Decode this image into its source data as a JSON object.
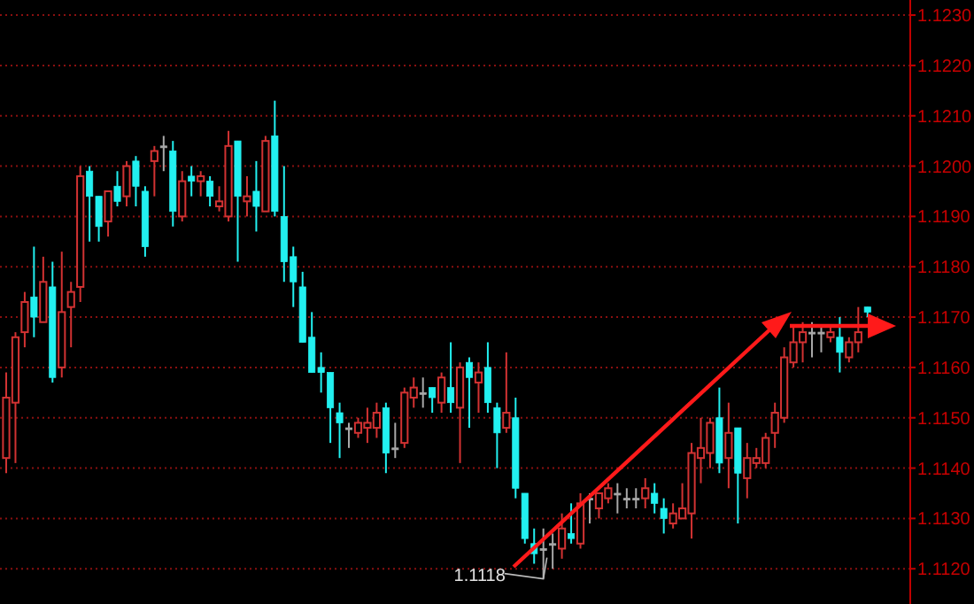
{
  "chart_data": {
    "type": "candlestick",
    "categories": [
      null,
      null,
      null,
      null,
      null,
      null,
      null,
      null,
      null,
      null,
      null,
      null,
      null,
      null,
      null,
      null,
      null,
      null,
      null,
      null,
      null,
      null,
      null,
      null,
      null,
      null,
      null,
      null,
      null,
      null,
      null,
      null,
      null,
      null,
      null,
      null,
      null,
      null,
      null,
      null,
      null,
      null,
      null,
      null,
      null,
      null,
      null,
      null,
      null,
      null,
      null,
      null,
      null,
      null,
      null,
      null,
      null,
      null,
      null,
      null,
      null,
      null,
      null,
      null,
      null,
      null,
      null,
      null,
      null,
      null,
      null,
      null,
      null,
      null,
      null,
      null,
      null,
      null,
      null,
      null,
      null,
      null,
      null,
      null,
      null,
      null,
      null,
      null,
      null,
      null,
      null,
      null,
      null,
      null
    ],
    "ohlc": [
      [
        1.1142,
        1.1159,
        1.1139,
        1.1154
      ],
      [
        1.1153,
        1.1167,
        1.1141,
        1.1166
      ],
      [
        1.1167,
        1.1175,
        1.1164,
        1.1173
      ],
      [
        1.1174,
        1.1184,
        1.1166,
        1.117
      ],
      [
        1.1169,
        1.1182,
        1.1169,
        1.1177
      ],
      [
        1.1176,
        1.1181,
        1.1157,
        1.1158
      ],
      [
        1.116,
        1.1183,
        1.1158,
        1.1171
      ],
      [
        1.1172,
        1.1177,
        1.1164,
        1.1175
      ],
      [
        1.1176,
        1.12,
        1.1173,
        1.1198
      ],
      [
        1.1199,
        1.12,
        1.1185,
        1.1194
      ],
      [
        1.1194,
        1.1194,
        1.1185,
        1.1188
      ],
      [
        1.1189,
        1.1195,
        1.1186,
        1.1195
      ],
      [
        1.1196,
        1.1199,
        1.1192,
        1.1193
      ],
      [
        1.1194,
        1.1201,
        1.1192,
        1.12
      ],
      [
        1.1201,
        1.1202,
        1.1192,
        1.1196
      ],
      [
        1.1195,
        1.1196,
        1.1182,
        1.1184
      ],
      [
        1.1201,
        1.1204,
        1.1194,
        1.1203
      ],
      [
        1.1204,
        1.1206,
        1.1199,
        1.1204
      ],
      [
        1.1203,
        1.1205,
        1.1188,
        1.1191
      ],
      [
        1.119,
        1.1199,
        1.1189,
        1.1197
      ],
      [
        1.1198,
        1.12,
        1.1194,
        1.1197
      ],
      [
        1.1197,
        1.1199,
        1.1194,
        1.1198
      ],
      [
        1.1197,
        1.1198,
        1.1192,
        1.1194
      ],
      [
        1.1192,
        1.1196,
        1.1191,
        1.1193
      ],
      [
        1.119,
        1.1207,
        1.1189,
        1.1204
      ],
      [
        1.1205,
        1.1205,
        1.1181,
        1.1194
      ],
      [
        1.1193,
        1.1198,
        1.119,
        1.1194
      ],
      [
        1.1195,
        1.1201,
        1.1187,
        1.1192
      ],
      [
        1.1191,
        1.1206,
        1.1191,
        1.1205
      ],
      [
        1.1206,
        1.1213,
        1.119,
        1.1191
      ],
      [
        1.119,
        1.12,
        1.1177,
        1.1181
      ],
      [
        1.1182,
        1.1184,
        1.1172,
        1.1177
      ],
      [
        1.1176,
        1.1179,
        1.1165,
        1.1165
      ],
      [
        1.1166,
        1.1171,
        1.1159,
        1.1159
      ],
      [
        1.116,
        1.1163,
        1.1155,
        1.1159
      ],
      [
        1.1159,
        1.1159,
        1.1145,
        1.1152
      ],
      [
        1.1151,
        1.1153,
        1.1142,
        1.1149
      ],
      [
        1.1148,
        1.1149,
        1.1144,
        1.1148
      ],
      [
        1.1147,
        1.115,
        1.1146,
        1.1149
      ],
      [
        1.1148,
        1.1152,
        1.1145,
        1.1149
      ],
      [
        1.1148,
        1.1153,
        1.1146,
        1.1151
      ],
      [
        1.1152,
        1.1153,
        1.1139,
        1.1143
      ],
      [
        1.1144,
        1.1149,
        1.1142,
        1.1144
      ],
      [
        1.1145,
        1.1156,
        1.1144,
        1.1155
      ],
      [
        1.1154,
        1.1158,
        1.1152,
        1.1156
      ],
      [
        1.1155,
        1.1158,
        1.1152,
        1.1155
      ],
      [
        1.1156,
        1.1156,
        1.1151,
        1.1154
      ],
      [
        1.1153,
        1.1159,
        1.1151,
        1.1158
      ],
      [
        1.1156,
        1.1165,
        1.1151,
        1.1153
      ],
      [
        1.1152,
        1.1161,
        1.1141,
        1.116
      ],
      [
        1.1161,
        1.1162,
        1.1148,
        1.1158
      ],
      [
        1.1157,
        1.1161,
        1.1151,
        1.1159
      ],
      [
        1.116,
        1.1165,
        1.1151,
        1.1153
      ],
      [
        1.1152,
        1.1153,
        1.114,
        1.1147
      ],
      [
        1.1148,
        1.1163,
        1.1147,
        1.1151
      ],
      [
        1.115,
        1.1154,
        1.1134,
        1.1136
      ],
      [
        1.1135,
        1.1135,
        1.1125,
        1.1126
      ],
      [
        1.1125,
        1.1128,
        1.1121,
        1.1123
      ],
      [
        1.1124,
        1.1128,
        1.1118,
        1.1124
      ],
      [
        1.1125,
        1.1127,
        1.112,
        1.1125
      ],
      [
        1.1124,
        1.1131,
        1.1122,
        1.1128
      ],
      [
        1.1127,
        1.1133,
        1.1125,
        1.1126
      ],
      [
        1.1125,
        1.1135,
        1.1124,
        1.1133
      ],
      [
        1.1134,
        1.1135,
        1.1129,
        1.1134
      ],
      [
        1.1132,
        1.1135,
        1.113,
        1.1135
      ],
      [
        1.1134,
        1.1137,
        1.1133,
        1.1136
      ],
      [
        1.1135,
        1.1137,
        1.1131,
        1.1135
      ],
      [
        1.1134,
        1.1136,
        1.1132,
        1.1134
      ],
      [
        1.1134,
        1.1136,
        1.1132,
        1.1134
      ],
      [
        1.1134,
        1.1138,
        1.1132,
        1.1136
      ],
      [
        1.1135,
        1.1137,
        1.1131,
        1.1133
      ],
      [
        1.1132,
        1.1134,
        1.1127,
        1.113
      ],
      [
        1.1129,
        1.1133,
        1.1128,
        1.1131
      ],
      [
        1.113,
        1.1137,
        1.113,
        1.1132
      ],
      [
        1.1131,
        1.1145,
        1.1126,
        1.1143
      ],
      [
        1.1142,
        1.115,
        1.1137,
        1.1144
      ],
      [
        1.1143,
        1.115,
        1.114,
        1.1149
      ],
      [
        1.115,
        1.1156,
        1.1139,
        1.1141
      ],
      [
        1.1142,
        1.1153,
        1.1136,
        1.1147
      ],
      [
        1.1148,
        1.1148,
        1.1129,
        1.1139
      ],
      [
        1.1138,
        1.1145,
        1.1134,
        1.1142
      ],
      [
        1.1141,
        1.1144,
        1.114,
        1.1142
      ],
      [
        1.1141,
        1.1147,
        1.114,
        1.1146
      ],
      [
        1.1147,
        1.1153,
        1.1144,
        1.1151
      ],
      [
        1.115,
        1.1164,
        1.1149,
        1.1162
      ],
      [
        1.1161,
        1.1168,
        1.116,
        1.1165
      ],
      [
        1.1165,
        1.1169,
        1.1161,
        1.1167
      ],
      [
        1.1167,
        1.1169,
        1.1162,
        1.1167
      ],
      [
        1.1167,
        1.1168,
        1.1163,
        1.1167
      ],
      [
        1.1166,
        1.1168,
        1.1165,
        1.1167
      ],
      [
        1.1166,
        1.117,
        1.1159,
        1.1163
      ],
      [
        1.1162,
        1.1166,
        1.1161,
        1.1165
      ],
      [
        1.1165,
        1.1172,
        1.1163,
        1.1167
      ],
      [
        1.1172,
        1.1172,
        1.117,
        1.1171
      ]
    ],
    "colors": [
      "#d23232",
      "#d23232",
      "#d23232",
      "#22f0f0",
      "#d23232",
      "#22f0f0",
      "#d23232",
      "#d23232",
      "#d23232",
      "#22f0f0",
      "#22f0f0",
      "#d23232",
      "#22f0f0",
      "#d23232",
      "#22f0f0",
      "#22f0f0",
      "#d23232",
      "#a8a8a8",
      "#22f0f0",
      "#d23232",
      "#22f0f0",
      "#d23232",
      "#22f0f0",
      "#d23232",
      "#d23232",
      "#22f0f0",
      "#d23232",
      "#22f0f0",
      "#d23232",
      "#22f0f0",
      "#22f0f0",
      "#22f0f0",
      "#22f0f0",
      "#22f0f0",
      "#22f0f0",
      "#22f0f0",
      "#22f0f0",
      "#a8a8a8",
      "#d23232",
      "#d23232",
      "#d23232",
      "#22f0f0",
      "#a8a8a8",
      "#d23232",
      "#d23232",
      "#a8a8a8",
      "#22f0f0",
      "#d23232",
      "#22f0f0",
      "#d23232",
      "#22f0f0",
      "#d23232",
      "#22f0f0",
      "#22f0f0",
      "#d23232",
      "#22f0f0",
      "#22f0f0",
      "#22f0f0",
      "#a8a8a8",
      "#a8a8a8",
      "#d23232",
      "#22f0f0",
      "#d23232",
      "#a8a8a8",
      "#d23232",
      "#d23232",
      "#a8a8a8",
      "#a8a8a8",
      "#a8a8a8",
      "#d23232",
      "#22f0f0",
      "#22f0f0",
      "#d23232",
      "#d23232",
      "#d23232",
      "#d23232",
      "#d23232",
      "#22f0f0",
      "#d23232",
      "#22f0f0",
      "#d23232",
      "#d23232",
      "#d23232",
      "#d23232",
      "#d23232",
      "#d23232",
      "#d23232",
      "#a8a8a8",
      "#a8a8a8",
      "#d23232",
      "#22f0f0",
      "#d23232",
      "#d23232",
      "#22f0f0"
    ],
    "ylim": [
      1.1113,
      1.1233
    ],
    "yticks": [
      {
        "value": 1.123,
        "label": "1.1230"
      },
      {
        "value": 1.122,
        "label": "1.1220"
      },
      {
        "value": 1.121,
        "label": "1.1210"
      },
      {
        "value": 1.12,
        "label": "1.1200"
      },
      {
        "value": 1.119,
        "label": "1.1190"
      },
      {
        "value": 1.118,
        "label": "1.1180"
      },
      {
        "value": 1.117,
        "label": "1.1170"
      },
      {
        "value": 1.116,
        "label": "1.1160"
      },
      {
        "value": 1.115,
        "label": "1.1150"
      },
      {
        "value": 1.114,
        "label": "1.1140"
      },
      {
        "value": 1.113,
        "label": "1.1130"
      },
      {
        "value": 1.112,
        "label": "1.1120"
      }
    ],
    "grid": "y",
    "annotations": [
      "1.1118"
    ]
  }
}
